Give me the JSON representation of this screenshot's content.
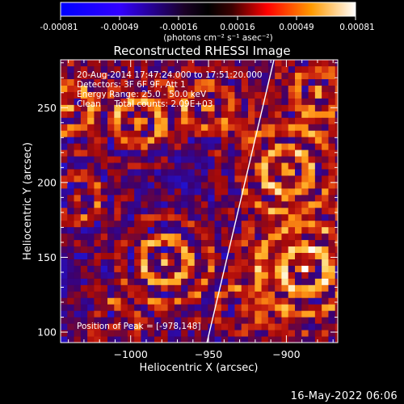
{
  "colorbar": {
    "ticks": [
      "-0.00081",
      "-0.00049",
      "-0.00016",
      "0.00016",
      "0.00049",
      "0.00081"
    ],
    "units": "(photons cm⁻² s⁻¹ asec⁻²)",
    "colors": [
      "#0000ff",
      "#6a00ff",
      "#000000",
      "#ff0000",
      "#ff8c00",
      "#ffffff"
    ]
  },
  "chart_data": {
    "type": "heatmap",
    "title": "Reconstructed RHESSI Image",
    "xlabel": "Heliocentric X (arcsec)",
    "ylabel": "Heliocentric Y (arcsec)",
    "xlim": [
      -1045,
      -867
    ],
    "ylim": [
      93,
      282
    ],
    "xticks": [
      -1000,
      -950,
      -900
    ],
    "yticks": [
      100,
      150,
      200,
      250
    ],
    "value_range": [
      -0.00081,
      0.00081
    ],
    "peak": [
      -978,
      148
    ],
    "limb_line": [
      [
        -951,
        93
      ],
      [
        -908,
        282
      ]
    ],
    "annotations": [
      "20-Aug-2014 17:47:24.000 to 17:51:20.000",
      "Detectors: 3F 6F 9F, Att 1",
      "Energy Range: 25.0 - 50.0 keV",
      "Clean     Total counts: 2.09E+03"
    ],
    "peak_label": "Position of Peak = [-978,148]",
    "sources": [
      {
        "x": -978,
        "y": 148,
        "amp": 1.0,
        "r": 22
      },
      {
        "x": -888,
        "y": 142,
        "amp": 0.95,
        "r": 26
      },
      {
        "x": -900,
        "y": 208,
        "amp": 0.85,
        "r": 24
      },
      {
        "x": -995,
        "y": 240,
        "amp": 0.8,
        "r": 18
      },
      {
        "x": -1040,
        "y": 250,
        "amp": 0.75,
        "r": 18
      },
      {
        "x": -1035,
        "y": 190,
        "amp": 0.7,
        "r": 18
      },
      {
        "x": -950,
        "y": 250,
        "amp": 0.65,
        "r": 18
      },
      {
        "x": -880,
        "y": 260,
        "amp": 0.75,
        "r": 18
      },
      {
        "x": -1010,
        "y": 105,
        "amp": 0.55,
        "r": 20
      },
      {
        "x": -930,
        "y": 115,
        "amp": 0.5,
        "r": 20
      }
    ]
  },
  "footer": {
    "date": "16-May-2022 06:06"
  }
}
